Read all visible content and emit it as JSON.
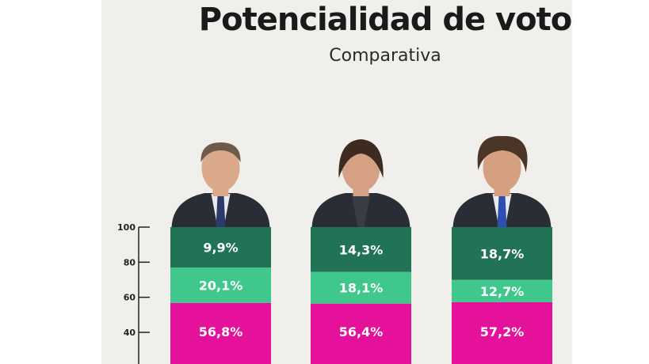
{
  "chart_data": {
    "type": "bar",
    "stacked": true,
    "title": "Potencialidad de voto",
    "subtitle": "Comparativa",
    "ylim": [
      0,
      100
    ],
    "yticks": [
      40,
      60,
      80,
      100
    ],
    "categories": [
      "",
      "",
      ""
    ],
    "series": [
      {
        "values": [
          56.8,
          56.4,
          57.2
        ],
        "labels": [
          "56,8%",
          "56,4%",
          "57,2%"
        ],
        "color": "#e6119a"
      },
      {
        "values": [
          20.1,
          18.1,
          12.7
        ],
        "labels": [
          "20,1%",
          "18,1%",
          "12,7%"
        ],
        "color": "#3fc78c"
      },
      {
        "values": [
          9.9,
          14.3,
          18.7
        ],
        "labels": [
          "9,9%",
          "14,3%",
          "18,7%"
        ],
        "color": "#217356"
      }
    ]
  },
  "colors": {
    "panel_bg": "#f0efeb",
    "axis": "#222222"
  },
  "candidates": [
    {
      "portrait": "candidate-1-portrait"
    },
    {
      "portrait": "candidate-2-portrait"
    },
    {
      "portrait": "candidate-3-portrait"
    }
  ]
}
